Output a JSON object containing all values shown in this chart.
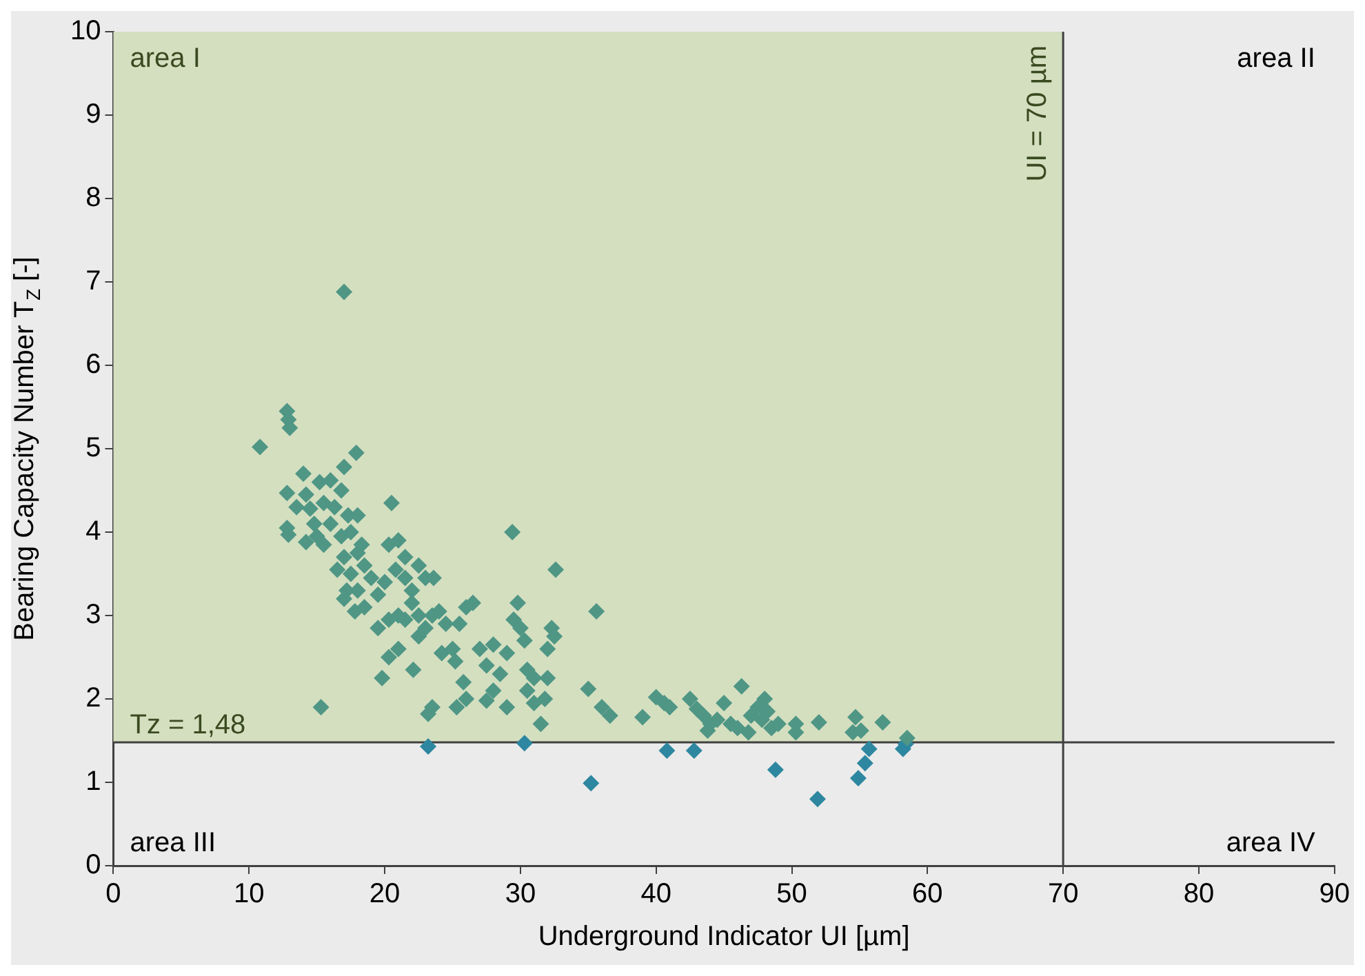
{
  "chart_data": {
    "type": "scatter",
    "xlabel": "Underground Indicator UI [µm]",
    "ylabel": "Bearing Capacity Number T$_{Z}$ [-]",
    "xlim": [
      0,
      90
    ],
    "xticks": [
      0,
      10,
      20,
      30,
      40,
      50,
      60,
      70,
      80,
      90
    ],
    "ylim": [
      0,
      10
    ],
    "yticks": [
      0,
      1,
      2,
      3,
      4,
      5,
      6,
      7,
      8,
      9,
      10
    ],
    "grid": false,
    "legend": false,
    "marker": "diamond",
    "series": [
      {
        "color": "#4f9685",
        "x": [
          17.0,
          10.8,
          12.8,
          12.9,
          13,
          17.9,
          12.8,
          12.8,
          12.9,
          13.5,
          14,
          14.2,
          14.5,
          14.8,
          15.2,
          15.5,
          16,
          16.3,
          16.8,
          17,
          17.3,
          15,
          15.5,
          14.2,
          16,
          16.8,
          17.5,
          18,
          18.3,
          16.5,
          17,
          17.5,
          18,
          18.5,
          17.2,
          18,
          19,
          17,
          18.5,
          17.8,
          19.5,
          20,
          20.5,
          20.3,
          21,
          21.5,
          20.8,
          21.5,
          22,
          22.5,
          23,
          23.6,
          21,
          21.5,
          22,
          22.5,
          23,
          23.5,
          24,
          24.5,
          19.5,
          20.3,
          19.8,
          20.3,
          21,
          22.1,
          22.5,
          24.2,
          25,
          25.5,
          26,
          26.5,
          25.2,
          25.8,
          26,
          27,
          27.5,
          28,
          28.5,
          29,
          29.5,
          29.8,
          30,
          30.3,
          29.4,
          28,
          27.5,
          25.3,
          23.5,
          23.2,
          15.3,
          29,
          30.5,
          31,
          31.5,
          31.8,
          32,
          32,
          32.5,
          32.3,
          32.6,
          30.5,
          31,
          35.6,
          35,
          36,
          36.6,
          39,
          40,
          40.6,
          41,
          42.5,
          43,
          43.5,
          44,
          44.5,
          45,
          43.8,
          45.5,
          46.3,
          46.8,
          47,
          47.5,
          48,
          47.8,
          48.2,
          48.5,
          50.3,
          50.3,
          52,
          54.7,
          54.5,
          55.1,
          56.7,
          58.5,
          49,
          46
        ],
        "values": [
          6.88,
          5.02,
          5.45,
          5.35,
          5.25,
          4.95,
          4.47,
          4.05,
          3.97,
          4.3,
          4.7,
          4.45,
          4.28,
          4.1,
          4.6,
          4.35,
          4.62,
          4.3,
          4.5,
          4.78,
          4.2,
          3.95,
          3.85,
          3.88,
          4.1,
          3.95,
          4.0,
          4.2,
          3.85,
          3.55,
          3.7,
          3.5,
          3.75,
          3.6,
          3.3,
          3.3,
          3.45,
          3.2,
          3.1,
          3.05,
          3.25,
          3.4,
          4.35,
          3.85,
          3.9,
          3.7,
          3.55,
          3.45,
          3.3,
          3.6,
          3.45,
          3.45,
          3.0,
          2.95,
          3.15,
          3.0,
          2.85,
          3.0,
          3.05,
          2.9,
          2.85,
          2.95,
          2.25,
          2.5,
          2.6,
          2.35,
          2.75,
          2.55,
          2.6,
          2.9,
          3.1,
          3.15,
          2.45,
          2.2,
          2.0,
          2.6,
          2.4,
          2.65,
          2.3,
          2.55,
          2.95,
          3.15,
          2.85,
          2.7,
          4.0,
          2.1,
          1.98,
          1.9,
          1.9,
          1.82,
          1.9,
          1.9,
          2.1,
          2.25,
          1.7,
          2.0,
          2.25,
          2.6,
          2.75,
          2.85,
          3.55,
          2.35,
          1.95,
          3.05,
          2.12,
          1.9,
          1.8,
          1.78,
          2.02,
          1.95,
          1.9,
          2.0,
          1.88,
          1.8,
          1.7,
          1.75,
          1.95,
          1.62,
          1.7,
          2.15,
          1.6,
          1.8,
          1.9,
          2.0,
          1.75,
          1.85,
          1.65,
          1.7,
          1.6,
          1.72,
          1.78,
          1.6,
          1.62,
          1.72,
          1.53,
          1.7,
          1.65
        ]
      },
      {
        "color": "#2e87a0",
        "x": [
          23.2,
          30.3,
          35.2,
          40.8,
          42.8,
          48.8,
          51.9,
          54.9,
          55.4,
          55.7,
          58.2,
          58.4
        ],
        "values": [
          1.43,
          1.47,
          0.99,
          1.38,
          1.38,
          1.15,
          0.8,
          1.05,
          1.23,
          1.4,
          1.4,
          1.46
        ]
      }
    ],
    "ref_lines": [
      {
        "axis": "x",
        "value": 70,
        "label": "UI = 70 µm",
        "color": "#404040"
      },
      {
        "axis": "y",
        "value": 1.48,
        "label": "Tz = 1,48",
        "color": "#404040"
      }
    ],
    "bands": [
      {
        "axis": "y",
        "from": 1.48,
        "to": 10,
        "color": "#d4dfc0"
      }
    ],
    "annotations": [
      "area I",
      "area II",
      "area III",
      "area IV"
    ]
  }
}
